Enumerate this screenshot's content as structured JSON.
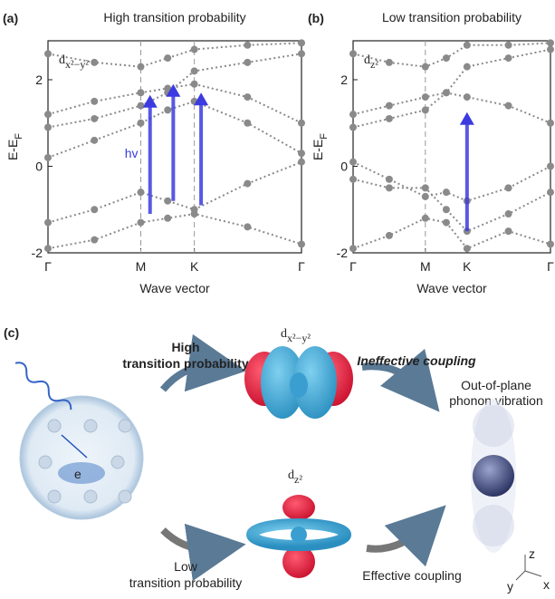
{
  "chart_data": [
    {
      "type": "scatter",
      "panel_label": "(a)",
      "title": "High transition probability",
      "orbital": {
        "base": "d",
        "sub": "x²−y²"
      },
      "xlabel": "Wave vector",
      "ylabel": {
        "base": "E-E",
        "sub": "F"
      },
      "xlim": [
        0,
        2.732
      ],
      "xticks": [
        {
          "value": 0,
          "label": "Γ"
        },
        {
          "value": 1,
          "label": "M"
        },
        {
          "value": 1.577,
          "label": "K"
        },
        {
          "value": 2.732,
          "label": "Γ"
        }
      ],
      "ylim": [
        -2,
        2.9
      ],
      "yticks": [
        -2,
        0,
        2
      ],
      "dashed_ticks": [
        1,
        2
      ],
      "color": "#8a8a8a",
      "bands": [
        {
          "x": [
            0,
            0.5,
            1,
            1.29,
            1.577,
            2.15,
            2.732
          ],
          "values": [
            1.2,
            1.5,
            1.7,
            1.8,
            1.9,
            1.6,
            1.0
          ]
        },
        {
          "x": [
            0,
            0.5,
            1,
            1.29,
            1.577,
            2.15,
            2.732
          ],
          "values": [
            0.9,
            1.1,
            1.4,
            1.7,
            2.2,
            2.4,
            2.6
          ]
        },
        {
          "x": [
            0,
            0.5,
            1,
            1.29,
            1.577,
            2.15,
            2.732
          ],
          "values": [
            0.2,
            0.6,
            1.0,
            1.3,
            1.5,
            1.0,
            0.3
          ]
        },
        {
          "x": [
            0,
            0.5,
            1,
            1.29,
            1.577,
            2.15,
            2.732
          ],
          "values": [
            -1.3,
            -1.0,
            -0.6,
            -0.8,
            -1.0,
            -0.4,
            0.1
          ]
        },
        {
          "x": [
            0,
            0.5,
            1,
            1.29,
            1.577,
            2.15,
            2.732
          ],
          "values": [
            -1.9,
            -1.7,
            -1.3,
            -1.2,
            -1.1,
            -1.4,
            -1.8
          ]
        },
        {
          "x": [
            0,
            0.5,
            1,
            1.29,
            1.577,
            2.15,
            2.732
          ],
          "values": [
            2.6,
            2.4,
            2.3,
            2.5,
            2.7,
            2.8,
            2.85
          ]
        }
      ],
      "arrows": [
        {
          "x": 1.1,
          "from": -1.1,
          "to": 1.65
        },
        {
          "x": 1.35,
          "from": -0.8,
          "to": 1.9
        },
        {
          "x": 1.65,
          "from": -0.9,
          "to": 1.7
        }
      ],
      "arrow_color": "#3b3be0",
      "annotation": "hv"
    },
    {
      "type": "scatter",
      "panel_label": "(b)",
      "title": "Low transition probability",
      "orbital": {
        "base": "d",
        "sub": "z²"
      },
      "xlabel": "Wave vector",
      "ylabel": {
        "base": "E-E",
        "sub": "F"
      },
      "xlim": [
        0,
        2.732
      ],
      "xticks": [
        {
          "value": 0,
          "label": "Γ"
        },
        {
          "value": 1,
          "label": "M"
        },
        {
          "value": 1.577,
          "label": "K"
        },
        {
          "value": 2.732,
          "label": "Γ"
        }
      ],
      "ylim": [
        -2,
        2.9
      ],
      "yticks": [
        -2,
        0,
        2
      ],
      "dashed_ticks": [
        1
      ],
      "color": "#8a8a8a",
      "bands": [
        {
          "x": [
            0,
            0.5,
            1,
            1.29,
            1.577,
            2.15,
            2.732
          ],
          "values": [
            1.2,
            1.4,
            1.6,
            1.7,
            1.6,
            1.4,
            1.0
          ]
        },
        {
          "x": [
            0,
            0.5,
            1,
            1.29,
            1.577,
            2.15,
            2.732
          ],
          "values": [
            0.9,
            1.1,
            1.3,
            1.7,
            2.3,
            2.5,
            2.7
          ]
        },
        {
          "x": [
            0,
            0.5,
            1,
            1.29,
            1.577,
            2.15,
            2.732
          ],
          "values": [
            0.1,
            -0.3,
            -0.7,
            -0.6,
            -0.8,
            -0.5,
            0.0
          ]
        },
        {
          "x": [
            0,
            0.5,
            1,
            1.29,
            1.577,
            2.15,
            2.732
          ],
          "values": [
            -0.3,
            -0.5,
            -0.5,
            -1.0,
            -1.5,
            -1.1,
            -0.6
          ]
        },
        {
          "x": [
            0,
            0.5,
            1,
            1.29,
            1.577,
            2.15,
            2.732
          ],
          "values": [
            -1.9,
            -1.6,
            -1.2,
            -1.3,
            -1.9,
            -1.5,
            -1.8
          ]
        },
        {
          "x": [
            0,
            0.5,
            1,
            1.29,
            1.577,
            2.15,
            2.732
          ],
          "values": [
            2.6,
            2.4,
            2.3,
            2.5,
            2.8,
            2.8,
            2.85
          ]
        }
      ],
      "arrows": [
        {
          "x": 1.577,
          "from": -1.5,
          "to": 1.25
        }
      ],
      "arrow_color": "#3b3be0"
    }
  ],
  "diagram": {
    "panel_label": "(c)",
    "high_label": [
      "High",
      "transition probability"
    ],
    "low_label": [
      "Low",
      "transition probability"
    ],
    "orbital_top": {
      "base": "d",
      "sub": "x²−y²"
    },
    "orbital_bottom": {
      "base": "d",
      "sub": "z²"
    },
    "ineffective": "Ineffective coupling",
    "effective": "Effective coupling",
    "phonon": [
      "Out-of-plane",
      "phonon vibration"
    ],
    "electron": "e",
    "axes": [
      "z",
      "y",
      "x"
    ]
  }
}
